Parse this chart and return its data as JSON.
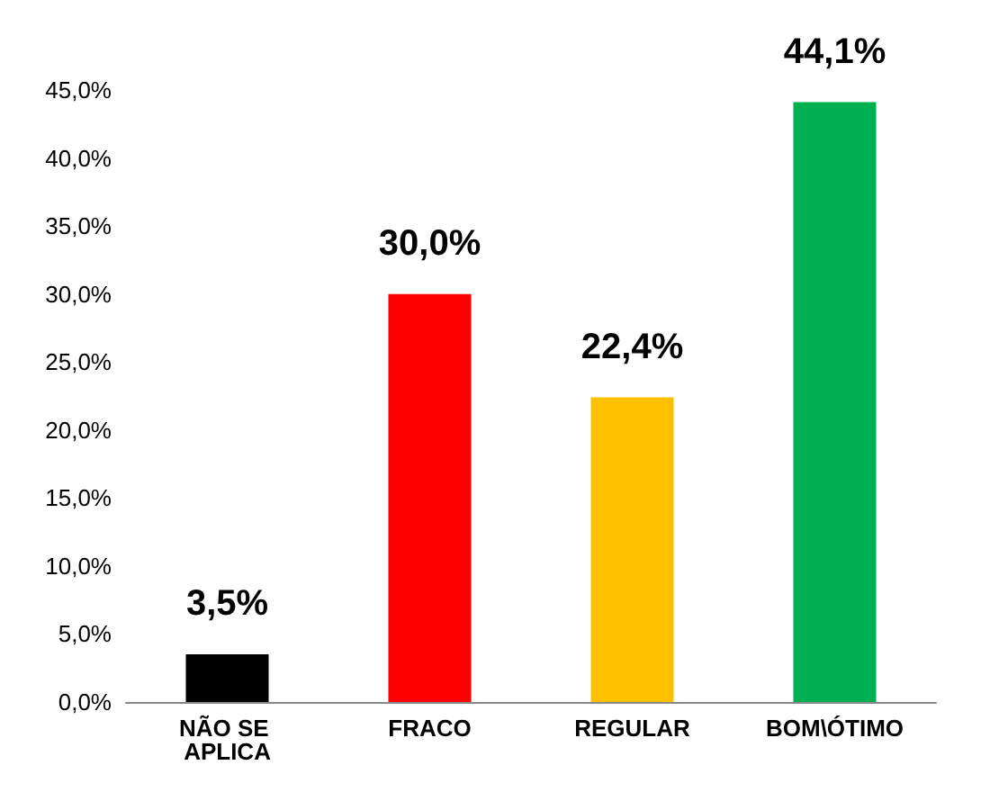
{
  "chart_data": {
    "type": "bar",
    "categories": [
      "NÃO SE APLICA",
      "FRACO",
      "REGULAR",
      "BOM\\ÓTIMO"
    ],
    "values": [
      3.5,
      30.0,
      22.4,
      44.1
    ],
    "colors": [
      "#000000",
      "#ff0000",
      "#ffc000",
      "#00b050"
    ],
    "value_labels": [
      "3,5%",
      "30,0%",
      "22,4%",
      "44,1%"
    ],
    "ylim": [
      0,
      45
    ],
    "yticks": [
      {
        "value": 0,
        "label": "0,0%"
      },
      {
        "value": 5,
        "label": "5,0%"
      },
      {
        "value": 10,
        "label": "10,0%"
      },
      {
        "value": 15,
        "label": "15,0%"
      },
      {
        "value": 20,
        "label": "20,0%"
      },
      {
        "value": 25,
        "label": "25,0%"
      },
      {
        "value": 30,
        "label": "30,0%"
      },
      {
        "value": 35,
        "label": "35,0%"
      },
      {
        "value": 40,
        "label": "40,0%"
      },
      {
        "value": 45,
        "label": "45,0%"
      }
    ],
    "grid": false
  }
}
